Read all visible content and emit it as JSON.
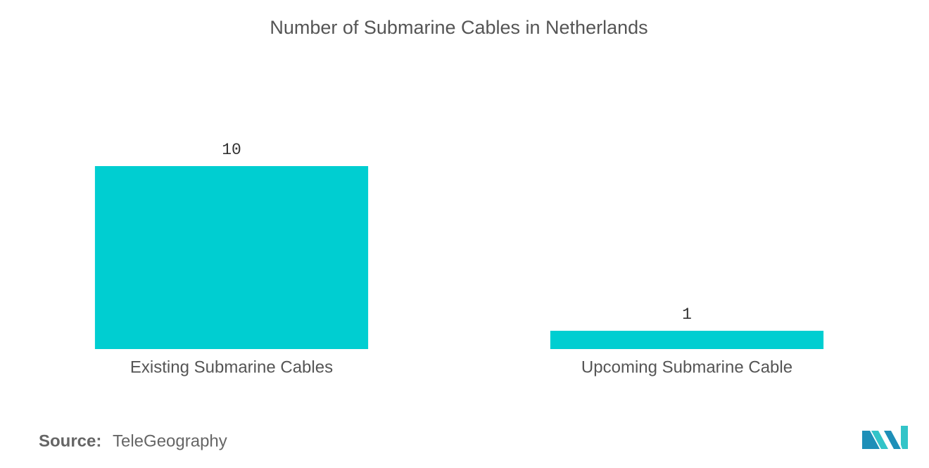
{
  "chart_data": {
    "type": "bar",
    "title": "Number of Submarine Cables in Netherlands",
    "categories": [
      "Existing Submarine Cables",
      "Upcoming Submarine Cable"
    ],
    "values": [
      10,
      1
    ],
    "color": "#00ced1"
  },
  "source": {
    "label": "Source:",
    "text": "TeleGeography"
  }
}
